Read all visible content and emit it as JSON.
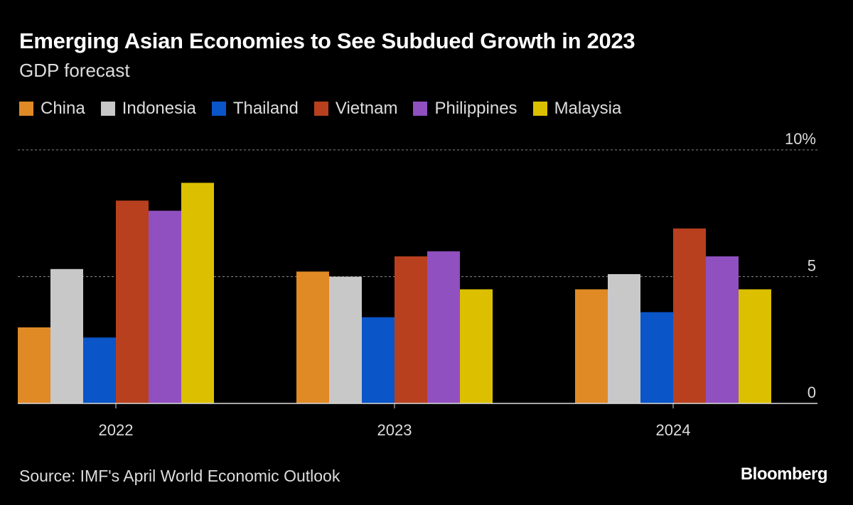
{
  "chart_data": {
    "type": "bar",
    "title": "Emerging Asian Economies to See Subdued Growth in 2023",
    "subtitle": "GDP forecast",
    "categories": [
      "2022",
      "2023",
      "2024"
    ],
    "series": [
      {
        "name": "China",
        "color": "#e08a26",
        "values": [
          3.0,
          5.2,
          4.5
        ]
      },
      {
        "name": "Indonesia",
        "color": "#c8c8c8",
        "values": [
          5.3,
          5.0,
          5.1
        ]
      },
      {
        "name": "Thailand",
        "color": "#0a55c8",
        "values": [
          2.6,
          3.4,
          3.6
        ]
      },
      {
        "name": "Vietnam",
        "color": "#b8401e",
        "values": [
          8.0,
          5.8,
          6.9
        ]
      },
      {
        "name": "Philippines",
        "color": "#9050c0",
        "values": [
          7.6,
          6.0,
          5.8
        ]
      },
      {
        "name": "Malaysia",
        "color": "#dcc000",
        "values": [
          8.7,
          4.5,
          4.5
        ]
      }
    ],
    "yticks": [
      {
        "value": 0,
        "label": "0"
      },
      {
        "value": 5,
        "label": "5"
      },
      {
        "value": 10,
        "label": "10%"
      }
    ],
    "ylim": [
      0,
      10
    ],
    "grid": true,
    "legend_position": "top-left",
    "xlabel": "",
    "ylabel": ""
  },
  "source": "Source: IMF's April World Economic Outlook",
  "logo": "Bloomberg"
}
